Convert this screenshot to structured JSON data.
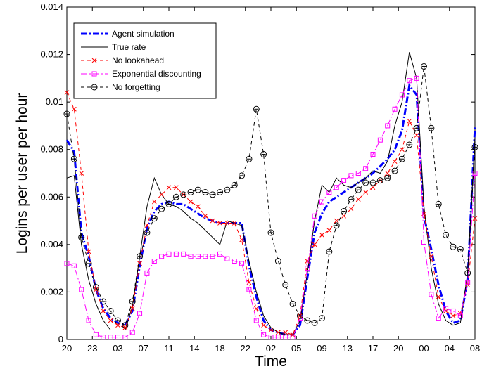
{
  "chart_data": {
    "type": "line",
    "title": "",
    "xlabel": "Time",
    "ylabel": "Logins per user per hour",
    "xlim": [
      0,
      56
    ],
    "ylim": [
      0,
      0.014
    ],
    "x_tick_labels": [
      "20",
      "23",
      "03",
      "07",
      "11",
      "14",
      "18",
      "22",
      "02",
      "05",
      "09",
      "13",
      "17",
      "20",
      "00",
      "04",
      "08"
    ],
    "y_ticks": [
      0,
      0.002,
      0.004,
      0.006,
      0.008,
      0.01,
      0.012,
      0.014
    ],
    "y_tick_labels": [
      "0",
      "0.002",
      "0.004",
      "0.006",
      "0.008",
      "0.01",
      "0.012",
      "0.014"
    ],
    "grid": false,
    "legend_position": "top-left",
    "series": [
      {
        "name": "Agent simulation",
        "color": "#0000ff",
        "dash": "9,3,2,3",
        "width": 3,
        "marker": "none",
        "points": [
          [
            0,
            0.0084
          ],
          [
            1,
            0.0079
          ],
          [
            2,
            0.0045
          ],
          [
            3,
            0.0035
          ],
          [
            4,
            0.0021
          ],
          [
            5,
            0.0013
          ],
          [
            6,
            0.0009
          ],
          [
            7,
            0.0007
          ],
          [
            8,
            0.0006
          ],
          [
            9,
            0.0012
          ],
          [
            10,
            0.0031
          ],
          [
            11,
            0.0047
          ],
          [
            12,
            0.0054
          ],
          [
            13,
            0.0057
          ],
          [
            14,
            0.0058
          ],
          [
            15,
            0.0057
          ],
          [
            16,
            0.0057
          ],
          [
            17,
            0.0055
          ],
          [
            18,
            0.0053
          ],
          [
            19,
            0.0051
          ],
          [
            20,
            0.005
          ],
          [
            21,
            0.0049
          ],
          [
            22,
            0.0049
          ],
          [
            23,
            0.0049
          ],
          [
            24,
            0.0049
          ],
          [
            25,
            0.0031
          ],
          [
            26,
            0.0018
          ],
          [
            27,
            0.0008
          ],
          [
            28,
            0.0004
          ],
          [
            29,
            0.0003
          ],
          [
            30,
            0.0002
          ],
          [
            31,
            0.0002
          ],
          [
            32,
            0.0006
          ],
          [
            33,
            0.0026
          ],
          [
            34,
            0.0045
          ],
          [
            35,
            0.0053
          ],
          [
            36,
            0.0058
          ],
          [
            37,
            0.006
          ],
          [
            38,
            0.0062
          ],
          [
            39,
            0.0064
          ],
          [
            40,
            0.0066
          ],
          [
            41,
            0.0068
          ],
          [
            42,
            0.007
          ],
          [
            43,
            0.0073
          ],
          [
            44,
            0.0076
          ],
          [
            45,
            0.008
          ],
          [
            46,
            0.0088
          ],
          [
            47,
            0.0107
          ],
          [
            48,
            0.0103
          ],
          [
            49,
            0.0052
          ],
          [
            50,
            0.0038
          ],
          [
            51,
            0.0023
          ],
          [
            52,
            0.0012
          ],
          [
            53,
            0.0007
          ],
          [
            54,
            0.0008
          ],
          [
            55,
            0.0025
          ],
          [
            56,
            0.009
          ]
        ]
      },
      {
        "name": "True rate",
        "color": "#000000",
        "dash": "",
        "width": 1,
        "marker": "none",
        "points": [
          [
            0,
            0.0068
          ],
          [
            1,
            0.0069
          ],
          [
            2,
            0.004
          ],
          [
            3,
            0.0025
          ],
          [
            4,
            0.0015
          ],
          [
            5,
            0.0008
          ],
          [
            6,
            0.0004
          ],
          [
            7,
            0.0004
          ],
          [
            8,
            0.0004
          ],
          [
            9,
            0.0014
          ],
          [
            10,
            0.0035
          ],
          [
            11,
            0.0056
          ],
          [
            12,
            0.0068
          ],
          [
            13,
            0.0061
          ],
          [
            14,
            0.0057
          ],
          [
            15,
            0.0056
          ],
          [
            16,
            0.0054
          ],
          [
            17,
            0.0051
          ],
          [
            18,
            0.0049
          ],
          [
            19,
            0.0046
          ],
          [
            20,
            0.0043
          ],
          [
            21,
            0.004
          ],
          [
            22,
            0.005
          ],
          [
            23,
            0.0049
          ],
          [
            24,
            0.0048
          ],
          [
            25,
            0.0033
          ],
          [
            26,
            0.002
          ],
          [
            27,
            0.001
          ],
          [
            28,
            0.0005
          ],
          [
            29,
            0.0003
          ],
          [
            30,
            0.0002
          ],
          [
            31,
            0.0002
          ],
          [
            32,
            0.0008
          ],
          [
            33,
            0.0028
          ],
          [
            34,
            0.005
          ],
          [
            35,
            0.0065
          ],
          [
            36,
            0.0062
          ],
          [
            37,
            0.0068
          ],
          [
            38,
            0.0065
          ],
          [
            39,
            0.0064
          ],
          [
            40,
            0.0066
          ],
          [
            41,
            0.0068
          ],
          [
            42,
            0.0071
          ],
          [
            43,
            0.007
          ],
          [
            44,
            0.0075
          ],
          [
            45,
            0.009
          ],
          [
            46,
            0.01
          ],
          [
            47,
            0.0121
          ],
          [
            48,
            0.011
          ],
          [
            49,
            0.0056
          ],
          [
            50,
            0.003
          ],
          [
            51,
            0.0015
          ],
          [
            52,
            0.0008
          ],
          [
            53,
            0.0006
          ],
          [
            54,
            0.0007
          ],
          [
            55,
            0.0028
          ],
          [
            56,
            0.0085
          ]
        ]
      },
      {
        "name": "No lookahead",
        "color": "#ff0000",
        "dash": "5,4",
        "width": 1,
        "marker": "x",
        "points": [
          [
            0,
            0.0104
          ],
          [
            1,
            0.0097
          ],
          [
            2,
            0.007
          ],
          [
            3,
            0.0037
          ],
          [
            4,
            0.0021
          ],
          [
            5,
            0.0012
          ],
          [
            6,
            0.0008
          ],
          [
            7,
            0.0006
          ],
          [
            8,
            0.0005
          ],
          [
            9,
            0.0013
          ],
          [
            10,
            0.0032
          ],
          [
            11,
            0.0048
          ],
          [
            12,
            0.0058
          ],
          [
            13,
            0.0061
          ],
          [
            14,
            0.0064
          ],
          [
            15,
            0.0064
          ],
          [
            16,
            0.0061
          ],
          [
            17,
            0.0058
          ],
          [
            18,
            0.0056
          ],
          [
            19,
            0.0052
          ],
          [
            20,
            0.005
          ],
          [
            21,
            0.0049
          ],
          [
            22,
            0.0049
          ],
          [
            23,
            0.0049
          ],
          [
            24,
            0.0042
          ],
          [
            25,
            0.0024
          ],
          [
            26,
            0.0013
          ],
          [
            27,
            0.0006
          ],
          [
            28,
            0.0004
          ],
          [
            29,
            0.0003
          ],
          [
            30,
            0.0003
          ],
          [
            31,
            0.0002
          ],
          [
            32,
            0.001
          ],
          [
            33,
            0.0033
          ],
          [
            34,
            0.004
          ],
          [
            35,
            0.0044
          ],
          [
            36,
            0.0046
          ],
          [
            37,
            0.005
          ],
          [
            38,
            0.0052
          ],
          [
            39,
            0.0055
          ],
          [
            40,
            0.0059
          ],
          [
            41,
            0.0062
          ],
          [
            42,
            0.0064
          ],
          [
            43,
            0.0067
          ],
          [
            44,
            0.007
          ],
          [
            45,
            0.0075
          ],
          [
            46,
            0.008
          ],
          [
            47,
            0.0092
          ],
          [
            48,
            0.0086
          ],
          [
            49,
            0.0053
          ],
          [
            50,
            0.0035
          ],
          [
            51,
            0.0018
          ],
          [
            52,
            0.0012
          ],
          [
            53,
            0.001
          ],
          [
            54,
            0.0011
          ],
          [
            55,
            0.0023
          ],
          [
            56,
            0.0051
          ]
        ]
      },
      {
        "name": "Exponential discounting",
        "color": "#ff00ff",
        "dash": "9,3,2,3",
        "width": 1,
        "marker": "square",
        "points": [
          [
            0,
            0.0032
          ],
          [
            1,
            0.0031
          ],
          [
            2,
            0.0021
          ],
          [
            3,
            0.0008
          ],
          [
            4,
            0.0002
          ],
          [
            5,
            0.0001
          ],
          [
            6,
            0.0001
          ],
          [
            7,
            0.0001
          ],
          [
            8,
            0.0001
          ],
          [
            9,
            0.0003
          ],
          [
            10,
            0.0011
          ],
          [
            11,
            0.0028
          ],
          [
            12,
            0.0033
          ],
          [
            13,
            0.0035
          ],
          [
            14,
            0.0036
          ],
          [
            15,
            0.0036
          ],
          [
            16,
            0.0036
          ],
          [
            17,
            0.0035
          ],
          [
            18,
            0.0035
          ],
          [
            19,
            0.0035
          ],
          [
            20,
            0.0035
          ],
          [
            21,
            0.0036
          ],
          [
            22,
            0.0034
          ],
          [
            23,
            0.0033
          ],
          [
            24,
            0.0032
          ],
          [
            25,
            0.0021
          ],
          [
            26,
            0.0008
          ],
          [
            27,
            0.0002
          ],
          [
            28,
            0.0001
          ],
          [
            29,
            0.0001
          ],
          [
            30,
            0.0001
          ],
          [
            31,
            0.0001
          ],
          [
            32,
            0.0009
          ],
          [
            33,
            0.003
          ],
          [
            34,
            0.0052
          ],
          [
            35,
            0.0058
          ],
          [
            36,
            0.0062
          ],
          [
            37,
            0.0064
          ],
          [
            38,
            0.0067
          ],
          [
            39,
            0.0069
          ],
          [
            40,
            0.007
          ],
          [
            41,
            0.0072
          ],
          [
            42,
            0.0078
          ],
          [
            43,
            0.0084
          ],
          [
            44,
            0.009
          ],
          [
            45,
            0.0097
          ],
          [
            46,
            0.0103
          ],
          [
            47,
            0.0109
          ],
          [
            48,
            0.011
          ],
          [
            49,
            0.0041
          ],
          [
            50,
            0.0019
          ],
          [
            51,
            0.0009
          ],
          [
            52,
            0.0013
          ],
          [
            53,
            0.0012
          ],
          [
            54,
            0.001
          ],
          [
            55,
            0.0024
          ],
          [
            56,
            0.007
          ]
        ]
      },
      {
        "name": "No forgetting",
        "color": "#000000",
        "dash": "5,4",
        "width": 1,
        "marker": "circle",
        "points": [
          [
            0,
            0.0095
          ],
          [
            1,
            0.0076
          ],
          [
            2,
            0.0043
          ],
          [
            3,
            0.0032
          ],
          [
            4,
            0.0022
          ],
          [
            5,
            0.0016
          ],
          [
            6,
            0.0012
          ],
          [
            7,
            0.0008
          ],
          [
            8,
            0.0006
          ],
          [
            9,
            0.0016
          ],
          [
            10,
            0.0035
          ],
          [
            11,
            0.0045
          ],
          [
            12,
            0.0051
          ],
          [
            13,
            0.0055
          ],
          [
            14,
            0.0057
          ],
          [
            15,
            0.006
          ],
          [
            16,
            0.0061
          ],
          [
            17,
            0.0062
          ],
          [
            18,
            0.0063
          ],
          [
            19,
            0.0062
          ],
          [
            20,
            0.0061
          ],
          [
            21,
            0.0062
          ],
          [
            22,
            0.0063
          ],
          [
            23,
            0.0065
          ],
          [
            24,
            0.0069
          ],
          [
            25,
            0.0076
          ],
          [
            26,
            0.0097
          ],
          [
            27,
            0.0078
          ],
          [
            28,
            0.0045
          ],
          [
            29,
            0.0033
          ],
          [
            30,
            0.0023
          ],
          [
            31,
            0.0015
          ],
          [
            32,
            0.001
          ],
          [
            33,
            0.0008
          ],
          [
            34,
            0.0007
          ],
          [
            35,
            0.0009
          ],
          [
            36,
            0.0037
          ],
          [
            37,
            0.0048
          ],
          [
            38,
            0.0054
          ],
          [
            39,
            0.0059
          ],
          [
            40,
            0.0063
          ],
          [
            41,
            0.0066
          ],
          [
            42,
            0.0066
          ],
          [
            43,
            0.0067
          ],
          [
            44,
            0.0068
          ],
          [
            45,
            0.0071
          ],
          [
            46,
            0.0076
          ],
          [
            47,
            0.0082
          ],
          [
            48,
            0.0089
          ],
          [
            49,
            0.0115
          ],
          [
            50,
            0.0089
          ],
          [
            51,
            0.0057
          ],
          [
            52,
            0.0044
          ],
          [
            53,
            0.0039
          ],
          [
            54,
            0.0038
          ],
          [
            55,
            0.0028
          ],
          [
            56,
            0.0081
          ]
        ]
      }
    ]
  }
}
